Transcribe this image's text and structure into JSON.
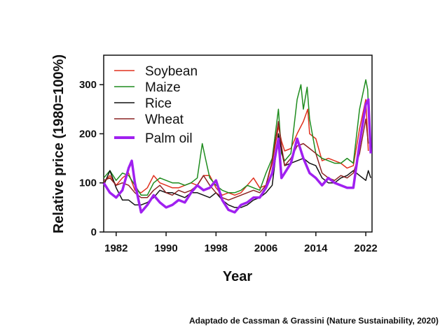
{
  "caption": "Adaptado de Cassman & Grassini (Nature Sustainability, 2020)",
  "chart_data": {
    "type": "line",
    "xlabel": "Year",
    "ylabel": "Relative price (1980=100%)",
    "xlim": [
      1980,
      2023
    ],
    "ylim": [
      0,
      360
    ],
    "xticks": [
      1982,
      1990,
      1998,
      2006,
      2014,
      2022
    ],
    "yticks": [
      0,
      100,
      200,
      300
    ],
    "grid": false,
    "legend": "top-left",
    "series": [
      {
        "name": "Soybean",
        "color": "#e0301e",
        "x": [
          1980,
          1981,
          1982,
          1983,
          1984,
          1985,
          1986,
          1987,
          1988,
          1989,
          1990,
          1991,
          1992,
          1993,
          1994,
          1995,
          1996,
          1997,
          1998,
          1999,
          2000,
          2001,
          2002,
          2003,
          2004,
          2005,
          2006,
          2007,
          2008,
          2008.5,
          2009,
          2010,
          2011,
          2012,
          2012.7,
          2013,
          2014,
          2015,
          2016,
          2017,
          2018,
          2019,
          2020,
          2021,
          2022,
          2022.4
        ],
        "y": [
          100,
          115,
          95,
          110,
          120,
          85,
          80,
          90,
          115,
          100,
          95,
          90,
          90,
          95,
          100,
          95,
          115,
          115,
          90,
          75,
          80,
          75,
          80,
          95,
          110,
          90,
          95,
          140,
          215,
          185,
          165,
          170,
          200,
          225,
          250,
          200,
          190,
          145,
          150,
          145,
          140,
          130,
          135,
          210,
          270,
          165
        ]
      },
      {
        "name": "Maize",
        "color": "#1e8c1e",
        "x": [
          1980,
          1981,
          1982,
          1983,
          1984,
          1985,
          1986,
          1987,
          1988,
          1989,
          1990,
          1991,
          1992,
          1993,
          1994,
          1995,
          1995.8,
          1996.3,
          1997,
          1998,
          1999,
          2000,
          2001,
          2002,
          2003,
          2004,
          2005,
          2006,
          2007,
          2008,
          2008.5,
          2009,
          2010,
          2011,
          2011.6,
          2012,
          2012.6,
          2013,
          2014,
          2015,
          2016,
          2017,
          2018,
          2019,
          2020,
          2021,
          2022,
          2022.3,
          2022.6
        ],
        "y": [
          110,
          125,
          105,
          120,
          115,
          95,
          75,
          75,
          100,
          110,
          105,
          100,
          100,
          95,
          100,
          110,
          180,
          150,
          110,
          95,
          85,
          80,
          80,
          85,
          95,
          90,
          85,
          120,
          150,
          250,
          160,
          145,
          160,
          270,
          300,
          250,
          295,
          230,
          160,
          150,
          145,
          140,
          140,
          150,
          140,
          250,
          310,
          290,
          200
        ]
      },
      {
        "name": "Rice",
        "color": "#111111",
        "x": [
          1980,
          1981,
          1982,
          1983,
          1984,
          1985,
          1986,
          1987,
          1988,
          1989,
          1990,
          1991,
          1992,
          1993,
          1994,
          1995,
          1996,
          1997,
          1998,
          1999,
          2000,
          2001,
          2002,
          2003,
          2004,
          2005,
          2006,
          2007,
          2008,
          2008.6,
          2009,
          2010,
          2011,
          2012,
          2013,
          2014,
          2015,
          2016,
          2017,
          2018,
          2019,
          2020,
          2021,
          2022,
          2022.4,
          2022.8
        ],
        "y": [
          95,
          125,
          90,
          65,
          65,
          55,
          55,
          60,
          70,
          85,
          80,
          80,
          75,
          70,
          80,
          80,
          75,
          70,
          80,
          65,
          55,
          50,
          50,
          55,
          65,
          70,
          80,
          95,
          200,
          160,
          135,
          140,
          145,
          150,
          140,
          135,
          110,
          100,
          100,
          110,
          115,
          125,
          115,
          105,
          125,
          110
        ]
      },
      {
        "name": "Wheat",
        "color": "#8b2323",
        "x": [
          1980,
          1981,
          1982,
          1983,
          1984,
          1985,
          1986,
          1987,
          1988,
          1989,
          1990,
          1991,
          1992,
          1993,
          1994,
          1995,
          1996,
          1997,
          1998,
          1999,
          2000,
          2001,
          2002,
          2003,
          2004,
          2005,
          2006,
          2007,
          2008,
          2008.5,
          2009,
          2010,
          2011,
          2012,
          2013,
          2014,
          2015,
          2016,
          2017,
          2018,
          2019,
          2020,
          2021,
          2022,
          2022.4
        ],
        "y": [
          105,
          110,
          95,
          100,
          95,
          80,
          70,
          70,
          85,
          95,
          80,
          75,
          85,
          80,
          85,
          95,
          115,
          95,
          80,
          70,
          65,
          70,
          75,
          80,
          85,
          80,
          95,
          145,
          225,
          175,
          135,
          150,
          175,
          180,
          170,
          160,
          120,
          110,
          105,
          115,
          110,
          120,
          160,
          230,
          180
        ]
      },
      {
        "name": "Palm oil",
        "color": "#a020f0",
        "x": [
          1980,
          1981,
          1982,
          1983,
          1984,
          1984.5,
          1985,
          1986,
          1987,
          1988,
          1989,
          1990,
          1991,
          1992,
          1993,
          1994,
          1995,
          1996,
          1997,
          1998,
          1999,
          2000,
          2001,
          2002,
          2003,
          2004,
          2005,
          2006,
          2007,
          2008,
          2008.5,
          2009,
          2010,
          2011,
          2012,
          2013,
          2014,
          2015,
          2016,
          2017,
          2018,
          2019,
          2020,
          2021,
          2022,
          2022.4,
          2022.8
        ],
        "y": [
          100,
          80,
          70,
          85,
          130,
          145,
          100,
          40,
          55,
          75,
          60,
          50,
          55,
          65,
          60,
          80,
          95,
          85,
          90,
          105,
          65,
          45,
          40,
          55,
          60,
          70,
          70,
          90,
          120,
          190,
          110,
          120,
          140,
          190,
          150,
          120,
          110,
          95,
          110,
          100,
          95,
          90,
          90,
          180,
          260,
          270,
          160
        ]
      }
    ]
  }
}
